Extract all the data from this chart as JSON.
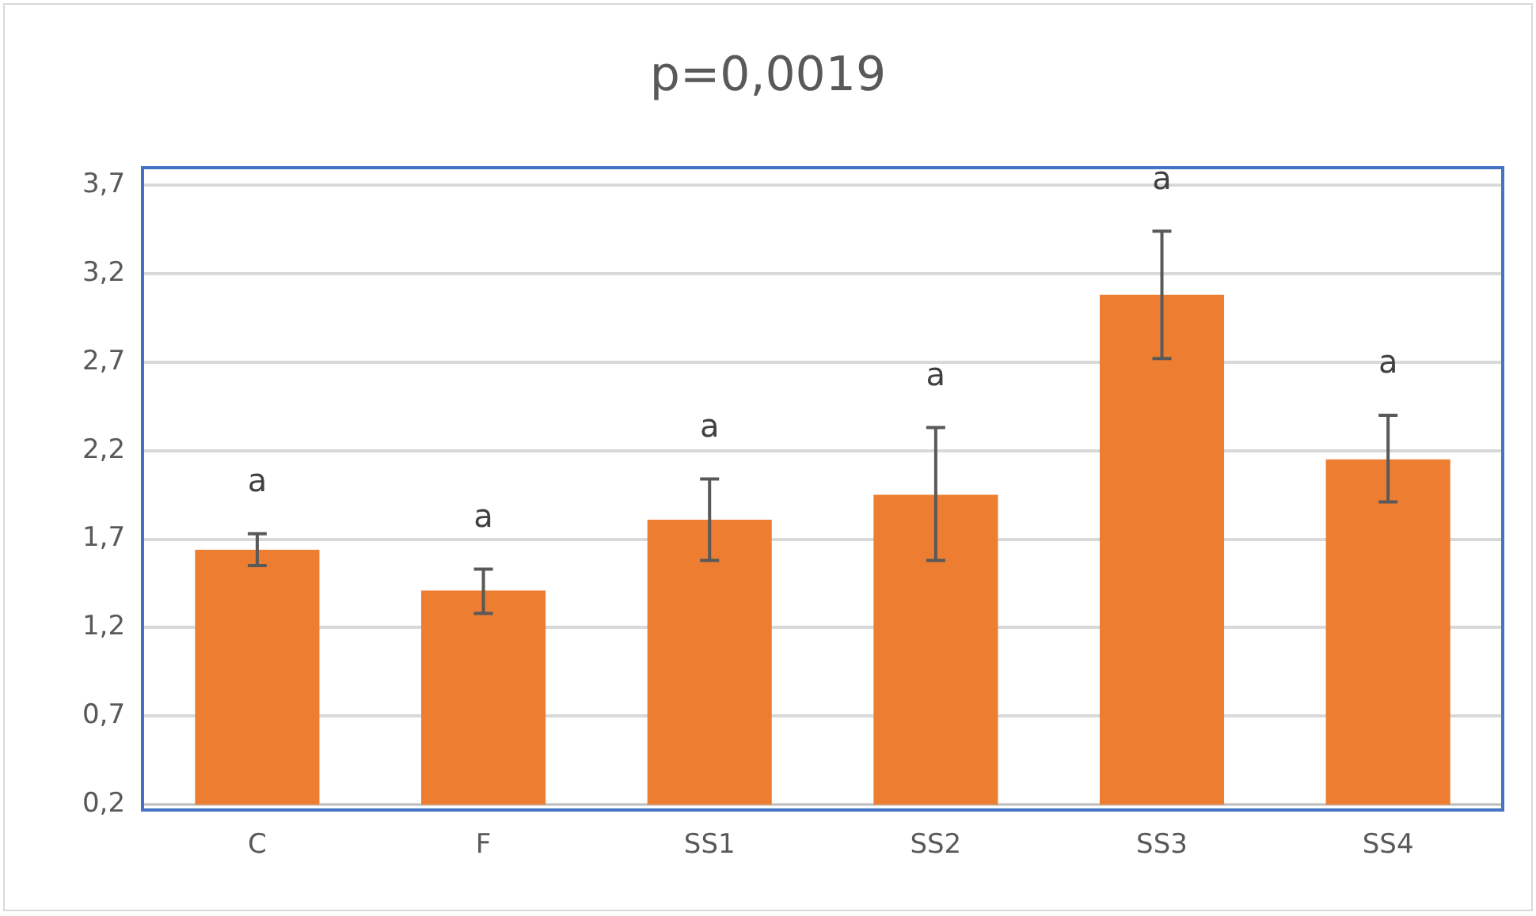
{
  "chart_data": {
    "type": "bar",
    "title": "p=0,0019",
    "categories": [
      "C",
      "F",
      "SS1",
      "SS2",
      "SS3",
      "SS4"
    ],
    "values": [
      1.64,
      1.41,
      1.81,
      1.95,
      3.08,
      2.15
    ],
    "errors": [
      [
        1.55,
        1.73
      ],
      [
        1.28,
        1.53
      ],
      [
        1.58,
        2.04
      ],
      [
        1.58,
        2.33
      ],
      [
        2.72,
        3.44
      ],
      [
        1.91,
        2.4
      ]
    ],
    "color": "#ed7d31",
    "ylim": [
      0.2,
      3.7
    ],
    "yticks": [
      {
        "value": 0.2,
        "label": "0,2"
      },
      {
        "value": 0.7,
        "label": "0,7"
      },
      {
        "value": 1.2,
        "label": "1,2"
      },
      {
        "value": 1.7,
        "label": "1,7"
      },
      {
        "value": 2.2,
        "label": "2,2"
      },
      {
        "value": 2.7,
        "label": "2,7"
      },
      {
        "value": 3.2,
        "label": "3,2"
      },
      {
        "value": 3.7,
        "label": "3,7"
      }
    ],
    "grid": "y",
    "annotations": [
      "a",
      "a",
      "a",
      "a",
      "a",
      "a"
    ]
  }
}
